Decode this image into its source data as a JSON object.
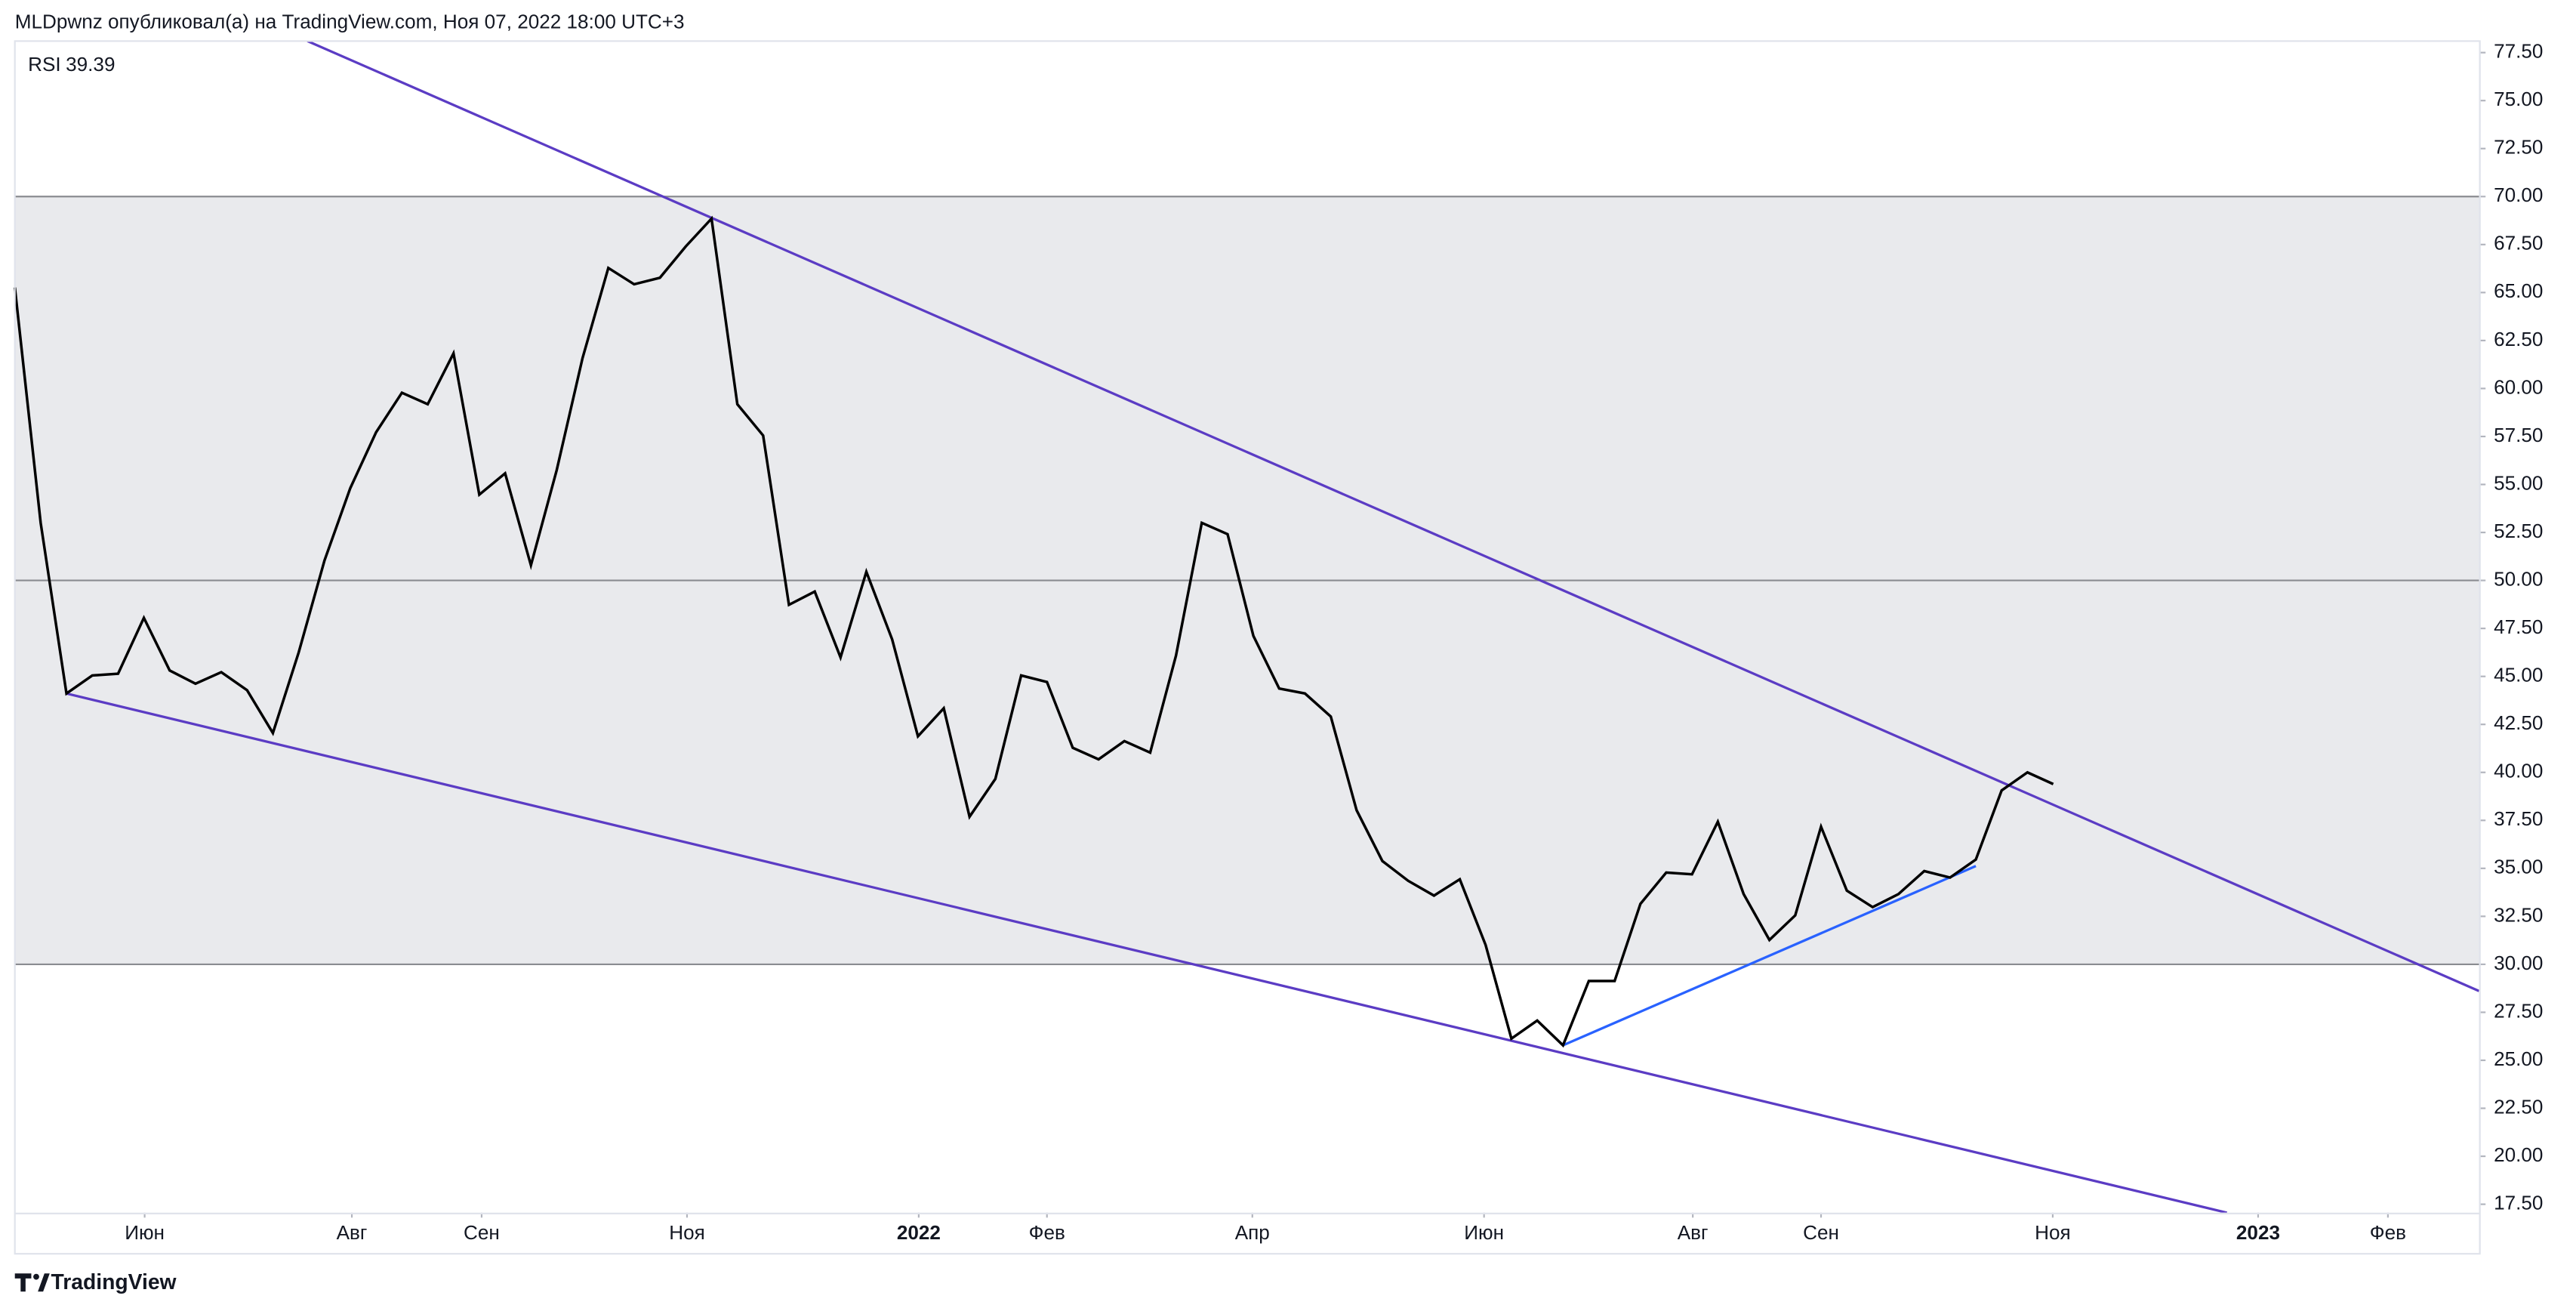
{
  "chart_data": {
    "type": "line",
    "title": "MLDpwnz опубликовал(а) на TradingView.com, Ноя 07, 2022 18:00 UTC+3",
    "footer": "TradingView",
    "x": [
      0,
      1,
      2,
      3,
      4,
      5,
      6,
      7,
      8,
      9,
      10,
      11,
      12,
      13,
      14,
      15,
      16,
      17,
      18,
      19,
      20,
      21,
      22,
      23,
      24,
      25,
      26,
      27,
      28,
      29,
      30,
      31,
      32,
      33,
      34,
      35,
      36,
      37,
      38,
      39,
      40,
      41,
      42,
      43,
      44,
      45,
      46,
      47,
      48,
      49,
      50,
      51,
      52,
      53,
      54,
      55,
      56,
      57,
      58,
      59,
      60,
      61,
      62,
      63,
      64,
      65,
      66,
      67,
      68,
      69,
      70,
      71,
      72,
      73,
      74,
      75,
      76,
      77,
      78,
      79
    ],
    "series": [
      {
        "name": "RSI",
        "color": "#000000",
        "values": [
          65.26,
          53.0,
          44.11,
          45.05,
          45.14,
          48.05,
          45.31,
          44.62,
          45.22,
          44.28,
          42.05,
          46.25,
          51.04,
          54.81,
          57.72,
          59.78,
          59.18,
          61.83,
          54.47,
          55.58,
          50.79,
          55.75,
          61.58,
          66.28,
          65.43,
          65.77,
          67.4,
          68.85,
          59.18,
          57.55,
          48.73,
          49.42,
          45.99,
          50.45,
          46.93,
          41.88,
          43.34,
          37.69,
          39.66,
          45.05,
          44.71,
          41.28,
          40.68,
          41.63,
          41.03,
          46.08,
          53.0,
          52.41,
          47.11,
          44.37,
          44.11,
          42.91,
          38.03,
          35.38,
          34.35,
          33.58,
          34.43,
          31.01,
          26.13,
          27.07,
          25.78,
          29.13,
          29.13,
          33.15,
          34.78,
          34.69,
          37.43,
          33.66,
          31.27,
          32.55,
          37.17,
          33.84,
          32.98,
          33.66,
          34.86,
          34.52,
          35.46,
          39.06,
          40.0,
          39.39
        ]
      }
    ],
    "xlim": [
      0,
      95.5
    ],
    "xticks": [
      {
        "value": 5.03,
        "label": "Июн"
      },
      {
        "value": 13.06,
        "label": "Авг"
      },
      {
        "value": 18.09,
        "label": "Сен"
      },
      {
        "value": 26.05,
        "label": "Ноя"
      },
      {
        "value": 35.03,
        "label": "2022"
      },
      {
        "value": 40.0,
        "label": "Фев"
      },
      {
        "value": 47.96,
        "label": "Апр"
      },
      {
        "value": 56.94,
        "label": "Июн"
      },
      {
        "value": 65.03,
        "label": "Авг"
      },
      {
        "value": 70.0,
        "label": "Сен"
      },
      {
        "value": 78.98,
        "label": "Ноя"
      },
      {
        "value": 86.94,
        "label": "2023"
      },
      {
        "value": 91.97,
        "label": "Фев"
      }
    ],
    "ylim": [
      17.06,
      78.1
    ],
    "yticks": [
      {
        "value": 17.5,
        "label": "17.50"
      },
      {
        "value": 20,
        "label": "20.00"
      },
      {
        "value": 22.5,
        "label": "22.50"
      },
      {
        "value": 25,
        "label": "25.00"
      },
      {
        "value": 27.5,
        "label": "27.50"
      },
      {
        "value": 30,
        "label": "30.00"
      },
      {
        "value": 32.5,
        "label": "32.50"
      },
      {
        "value": 35,
        "label": "35.00"
      },
      {
        "value": 37.5,
        "label": "37.50"
      },
      {
        "value": 40,
        "label": "40.00"
      },
      {
        "value": 42.5,
        "label": "42.50"
      },
      {
        "value": 45,
        "label": "45.00"
      },
      {
        "value": 47.5,
        "label": "47.50"
      },
      {
        "value": 50,
        "label": "50.00"
      },
      {
        "value": 52.5,
        "label": "52.50"
      },
      {
        "value": 55,
        "label": "55.00"
      },
      {
        "value": 57.5,
        "label": "57.50"
      },
      {
        "value": 60,
        "label": "60.00"
      },
      {
        "value": 62.5,
        "label": "62.50"
      },
      {
        "value": 65,
        "label": "65.00"
      },
      {
        "value": 67.5,
        "label": "67.50"
      },
      {
        "value": 70,
        "label": "70.00"
      },
      {
        "value": 72.5,
        "label": "72.50"
      },
      {
        "value": 75,
        "label": "75.00"
      },
      {
        "value": 77.5,
        "label": "77.50"
      }
    ],
    "band": [
      30,
      70
    ],
    "band_color": "#e9eaed",
    "levels": [
      30,
      50,
      70
    ],
    "level_color": "#8a8c91",
    "trend_lines": [
      {
        "color": "#5b3cc4",
        "x": [
          11.34,
          95.5
        ],
        "y": [
          78.1,
          28.61
        ]
      },
      {
        "color": "#5b3cc4",
        "x": [
          2,
          85.73
        ],
        "y": [
          44.11,
          17.06
        ]
      },
      {
        "color": "#2962ff",
        "x": [
          60,
          76
        ],
        "y": [
          25.78,
          35.12
        ]
      }
    ]
  }
}
